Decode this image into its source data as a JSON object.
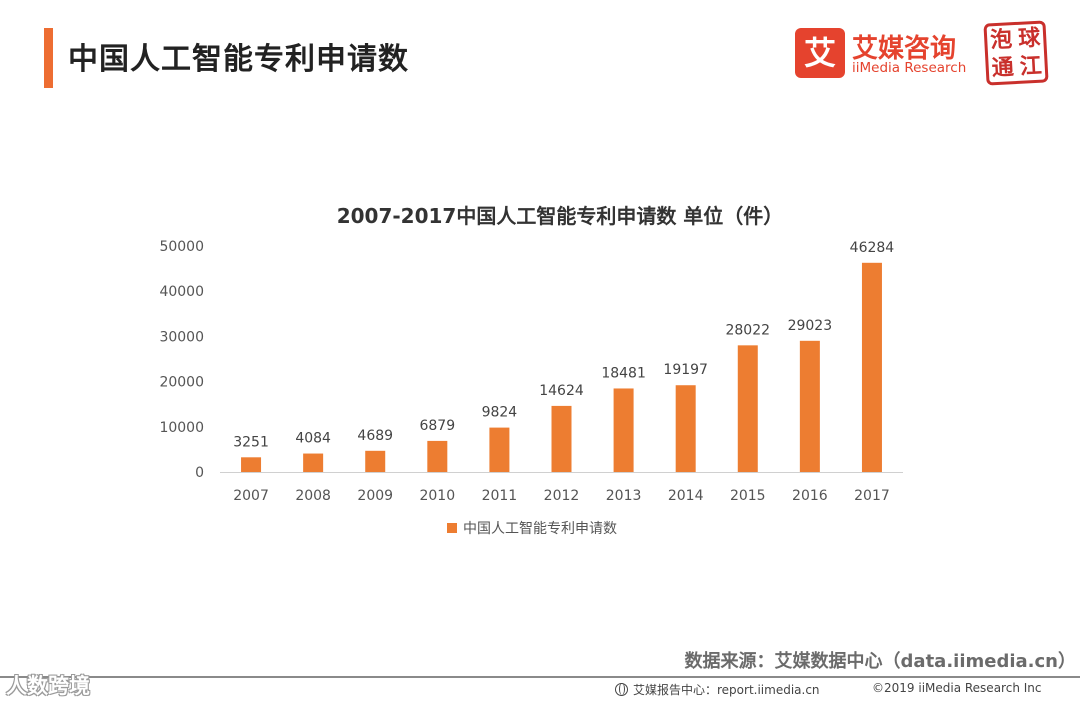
{
  "header": {
    "title": "中国人工智能专利申请数",
    "brand_mark": "艾",
    "brand_cn": "艾媒咨询",
    "brand_en": "iiMedia Research",
    "seal_chars": [
      "泡",
      "球",
      "通",
      "江"
    ]
  },
  "chart_data": {
    "type": "bar",
    "title": "2007-2017中国人工智能专利申请数 单位（件）",
    "categories": [
      "2007",
      "2008",
      "2009",
      "2010",
      "2011",
      "2012",
      "2013",
      "2014",
      "2015",
      "2016",
      "2017"
    ],
    "series": [
      {
        "name": "中国人工智能专利申请数",
        "values": [
          3251,
          4084,
          4689,
          6879,
          9824,
          14624,
          18481,
          19197,
          28022,
          29023,
          46284
        ],
        "color": "#ed7d31"
      }
    ],
    "yticks": [
      0,
      10000,
      20000,
      30000,
      40000,
      50000
    ],
    "ylim": [
      0,
      50000
    ],
    "grid": false,
    "legend": "bottom"
  },
  "footer": {
    "source": "数据来源：艾媒数据中心（data.iimedia.cn）",
    "watermark": "人数跨境",
    "report": "艾媒报告中心：report.iimedia.cn",
    "copyright": "©2019  iiMedia Research Inc"
  }
}
